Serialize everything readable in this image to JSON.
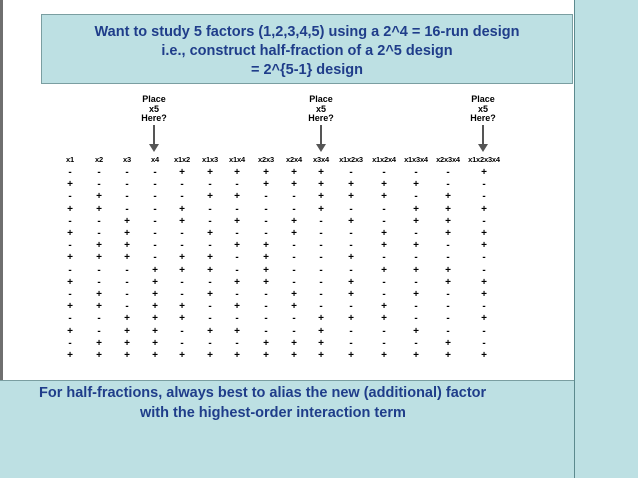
{
  "title_lines": [
    "Want to study 5 factors (1,2,3,4,5) using a 2^4 = 16-run design",
    "i.e., construct half-fraction of a 2^5 design",
    "= 2^{5-1} design"
  ],
  "place_label": [
    "Place",
    "x5",
    "Here?"
  ],
  "columns": [
    "x1",
    "x2",
    "x3",
    "x4",
    "x1x2",
    "x1x3",
    "x1x4",
    "x2x3",
    "x2x4",
    "x3x4",
    "x1x2x3",
    "x1x2x4",
    "x1x3x4",
    "x2x3x4",
    "x1x2x3x4"
  ],
  "rows": [
    [
      "-",
      "-",
      "-",
      "-",
      "+",
      "+",
      "+",
      "+",
      "+",
      "+",
      "-",
      "-",
      "-",
      "-",
      "+"
    ],
    [
      "+",
      "-",
      "-",
      "-",
      "-",
      "-",
      "-",
      "+",
      "+",
      "+",
      "+",
      "+",
      "+",
      "-",
      "-"
    ],
    [
      "-",
      "+",
      "-",
      "-",
      "-",
      "+",
      "+",
      "-",
      "-",
      "+",
      "+",
      "+",
      "-",
      "+",
      "-"
    ],
    [
      "+",
      "+",
      "-",
      "-",
      "+",
      "-",
      "-",
      "-",
      "-",
      "+",
      "-",
      "-",
      "+",
      "+",
      "+"
    ],
    [
      "-",
      "-",
      "+",
      "-",
      "+",
      "-",
      "+",
      "-",
      "+",
      "-",
      "+",
      "-",
      "+",
      "+",
      "-"
    ],
    [
      "+",
      "-",
      "+",
      "-",
      "-",
      "+",
      "-",
      "-",
      "+",
      "-",
      "-",
      "+",
      "-",
      "+",
      "+"
    ],
    [
      "-",
      "+",
      "+",
      "-",
      "-",
      "-",
      "+",
      "+",
      "-",
      "-",
      "-",
      "+",
      "+",
      "-",
      "+"
    ],
    [
      "+",
      "+",
      "+",
      "-",
      "+",
      "+",
      "-",
      "+",
      "-",
      "-",
      "+",
      "-",
      "-",
      "-",
      "-"
    ],
    [
      "-",
      "-",
      "-",
      "+",
      "+",
      "+",
      "-",
      "+",
      "-",
      "-",
      "-",
      "+",
      "+",
      "+",
      "-"
    ],
    [
      "+",
      "-",
      "-",
      "+",
      "-",
      "-",
      "+",
      "+",
      "-",
      "-",
      "+",
      "-",
      "-",
      "+",
      "+"
    ],
    [
      "-",
      "+",
      "-",
      "+",
      "-",
      "+",
      "-",
      "-",
      "+",
      "-",
      "+",
      "-",
      "+",
      "-",
      "+"
    ],
    [
      "+",
      "+",
      "-",
      "+",
      "+",
      "-",
      "+",
      "-",
      "+",
      "-",
      "-",
      "+",
      "-",
      "-",
      "-"
    ],
    [
      "-",
      "-",
      "+",
      "+",
      "+",
      "-",
      "-",
      "-",
      "-",
      "+",
      "+",
      "+",
      "-",
      "-",
      "+"
    ],
    [
      "+",
      "-",
      "+",
      "+",
      "-",
      "+",
      "+",
      "-",
      "-",
      "+",
      "-",
      "-",
      "+",
      "-",
      "-"
    ],
    [
      "-",
      "+",
      "+",
      "+",
      "-",
      "-",
      "-",
      "+",
      "+",
      "+",
      "-",
      "-",
      "-",
      "+",
      "-"
    ],
    [
      "+",
      "+",
      "+",
      "+",
      "+",
      "+",
      "+",
      "+",
      "+",
      "+",
      "+",
      "+",
      "+",
      "+",
      "+"
    ]
  ],
  "bottom_lines": [
    "For half-fractions, always best to alias the new (additional) factor",
    "with the highest-order interaction term"
  ],
  "colors": {
    "panel_bg": "#bde0e3",
    "title_text": "#1f3d8a",
    "table_text": "#000000",
    "arrow": "#555555"
  }
}
